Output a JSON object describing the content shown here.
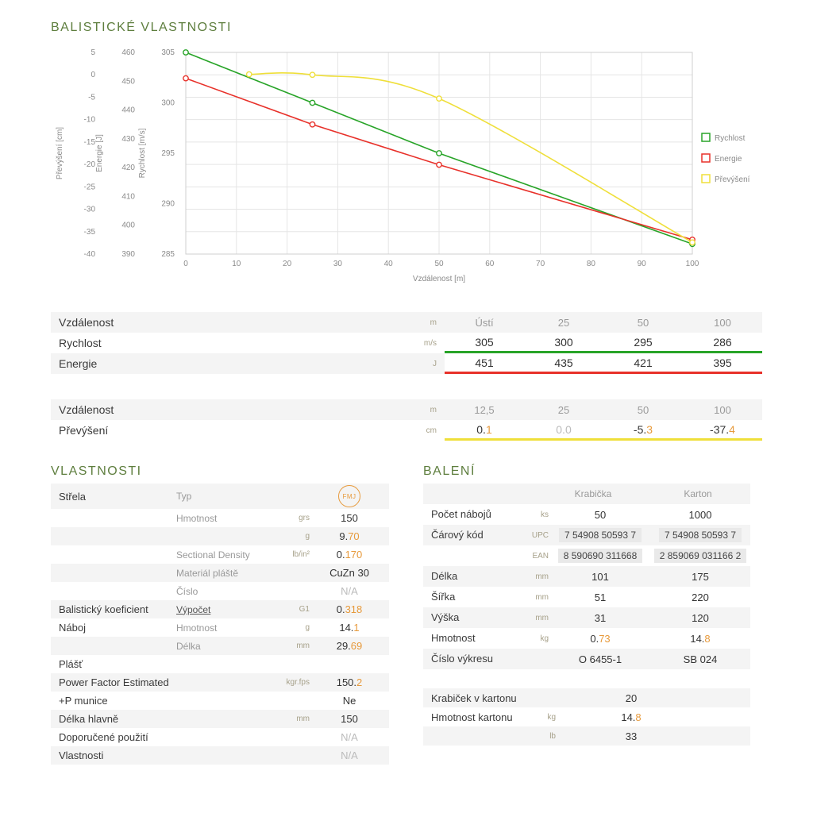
{
  "titles": {
    "ballistics": "BALISTICKÉ VLASTNOSTI",
    "properties": "VLASTNOSTI",
    "packaging": "BALENÍ"
  },
  "colors": {
    "green": "#28a428",
    "red": "#e8312a",
    "yellow": "#efdf3a",
    "orange": "#e79a3c",
    "title_green": "#5e7e3e"
  },
  "chart_data": {
    "type": "line",
    "xlabel": "Vzdálenost [m]",
    "x_range": [
      0,
      100
    ],
    "x_ticks": [
      0,
      10,
      20,
      30,
      40,
      50,
      60,
      70,
      80,
      90,
      100
    ],
    "grid": true,
    "legend_position": "right",
    "axes": [
      {
        "label": "Převýšení [cm]",
        "range": [
          -40,
          5
        ],
        "ticks": [
          5,
          0,
          -5,
          -10,
          -15,
          -20,
          -25,
          -30,
          -35,
          -40
        ]
      },
      {
        "label": "Energie [J]",
        "range": [
          390,
          460
        ],
        "ticks": [
          460,
          450,
          440,
          430,
          420,
          410,
          400,
          390
        ]
      },
      {
        "label": "Rychlost [m/s]",
        "range": [
          285,
          305
        ],
        "ticks": [
          305,
          300,
          295,
          290,
          285
        ]
      }
    ],
    "series": [
      {
        "name": "Rychlost",
        "color_key": "green",
        "axis": "Rychlost [m/s]",
        "x": [
          0,
          25,
          50,
          100
        ],
        "values": [
          305,
          300,
          295,
          286
        ],
        "smooth": false
      },
      {
        "name": "Energie",
        "color_key": "red",
        "axis": "Energie [J]",
        "x": [
          0,
          25,
          50,
          100
        ],
        "values": [
          451,
          435,
          421,
          395
        ],
        "smooth": false
      },
      {
        "name": "Převýšení",
        "color_key": "yellow",
        "axis": "Převýšení [cm]",
        "x": [
          12.5,
          25,
          50,
          100
        ],
        "values": [
          0.1,
          0.0,
          -5.3,
          -37.4
        ],
        "smooth": true
      }
    ]
  },
  "velocity_table": {
    "rows": [
      {
        "label": "Vzdálenost",
        "unit": "m",
        "type": "header",
        "values": [
          "Ústí",
          "25",
          "50",
          "100"
        ]
      },
      {
        "label": "Rychlost",
        "unit": "m/s",
        "underline": "green",
        "values": [
          "305",
          "300",
          "295",
          "286"
        ]
      },
      {
        "label": "Energie",
        "unit": "J",
        "underline": "red",
        "values": [
          "451",
          "435",
          "421",
          "395"
        ]
      }
    ]
  },
  "trajectory_table": {
    "rows": [
      {
        "label": "Vzdálenost",
        "unit": "m",
        "type": "header",
        "values": [
          "12,5",
          "25",
          "50",
          "100"
        ]
      },
      {
        "label": "Převýšení",
        "unit": "cm",
        "underline": "yellow",
        "values": [
          "0.1",
          "0.0",
          "-5.3",
          "-37.4"
        ]
      }
    ]
  },
  "properties_table": {
    "rows": [
      {
        "label": "Střela",
        "sub": "Typ",
        "unit": "",
        "value": "",
        "badge": "FMJ"
      },
      {
        "label": "",
        "sub": "Hmotnost",
        "unit": "grs",
        "value": "150"
      },
      {
        "label": "",
        "sub": "",
        "unit": "g",
        "value": "9.70"
      },
      {
        "label": "",
        "sub": "Sectional Density",
        "unit": "lb/in²",
        "value": "0.170"
      },
      {
        "label": "",
        "sub": "Materiál pláště",
        "unit": "",
        "value": "CuZn 30"
      },
      {
        "label": "",
        "sub": "Číslo",
        "unit": "",
        "value": "N/A"
      },
      {
        "label": "Balistický koeficient",
        "sub": "Výpočet",
        "sub_link": true,
        "unit": "G1",
        "value": "0.318"
      },
      {
        "label": "Náboj",
        "sub": "Hmotnost",
        "unit": "g",
        "value": "14.1"
      },
      {
        "label": "",
        "sub": "Délka",
        "unit": "mm",
        "value": "29.69"
      },
      {
        "label": "Plášť",
        "sub": "",
        "unit": "",
        "value": ""
      },
      {
        "label": "Power Factor Estimated",
        "sub": "",
        "unit": "kgr.fps",
        "value": "150.2"
      },
      {
        "label": "+P munice",
        "sub": "",
        "unit": "",
        "value": "Ne"
      },
      {
        "label": "Délka hlavně",
        "sub": "",
        "unit": "mm",
        "value": "150"
      },
      {
        "label": "Doporučené použití",
        "sub": "",
        "unit": "",
        "value": "N/A"
      },
      {
        "label": "Vlastnosti",
        "sub": "",
        "unit": "",
        "value": "N/A"
      }
    ]
  },
  "packaging_table": {
    "col_headers": [
      "Krabička",
      "Karton"
    ],
    "rows": [
      {
        "label": "Počet nábojů",
        "unit": "ks",
        "values": [
          "50",
          "1000"
        ]
      },
      {
        "label": "Čárový kód",
        "unit": "UPC",
        "barcode": true,
        "values": [
          "7 54908 50593 7",
          "7 54908 50593 7"
        ]
      },
      {
        "label": "",
        "unit": "EAN",
        "barcode": true,
        "values": [
          "8 590690 311668",
          "2 859069 031166 2"
        ]
      },
      {
        "label": "Délka",
        "unit": "mm",
        "values": [
          "101",
          "175"
        ]
      },
      {
        "label": "Šířka",
        "unit": "mm",
        "values": [
          "51",
          "220"
        ]
      },
      {
        "label": "Výška",
        "unit": "mm",
        "values": [
          "31",
          "120"
        ]
      },
      {
        "label": "Hmotnost",
        "unit": "kg",
        "values": [
          "0.73",
          "14.8"
        ]
      },
      {
        "label": "Číslo výkresu",
        "unit": "",
        "values": [
          "O 6455-1",
          "SB 024"
        ]
      }
    ]
  },
  "carton_table": {
    "rows": [
      {
        "label": "Krabiček v kartonu",
        "unit": "",
        "value": "20"
      },
      {
        "label": "Hmotnost kartonu",
        "unit": "kg",
        "value": "14.8"
      },
      {
        "label": "",
        "unit": "lb",
        "value": "33"
      }
    ]
  }
}
